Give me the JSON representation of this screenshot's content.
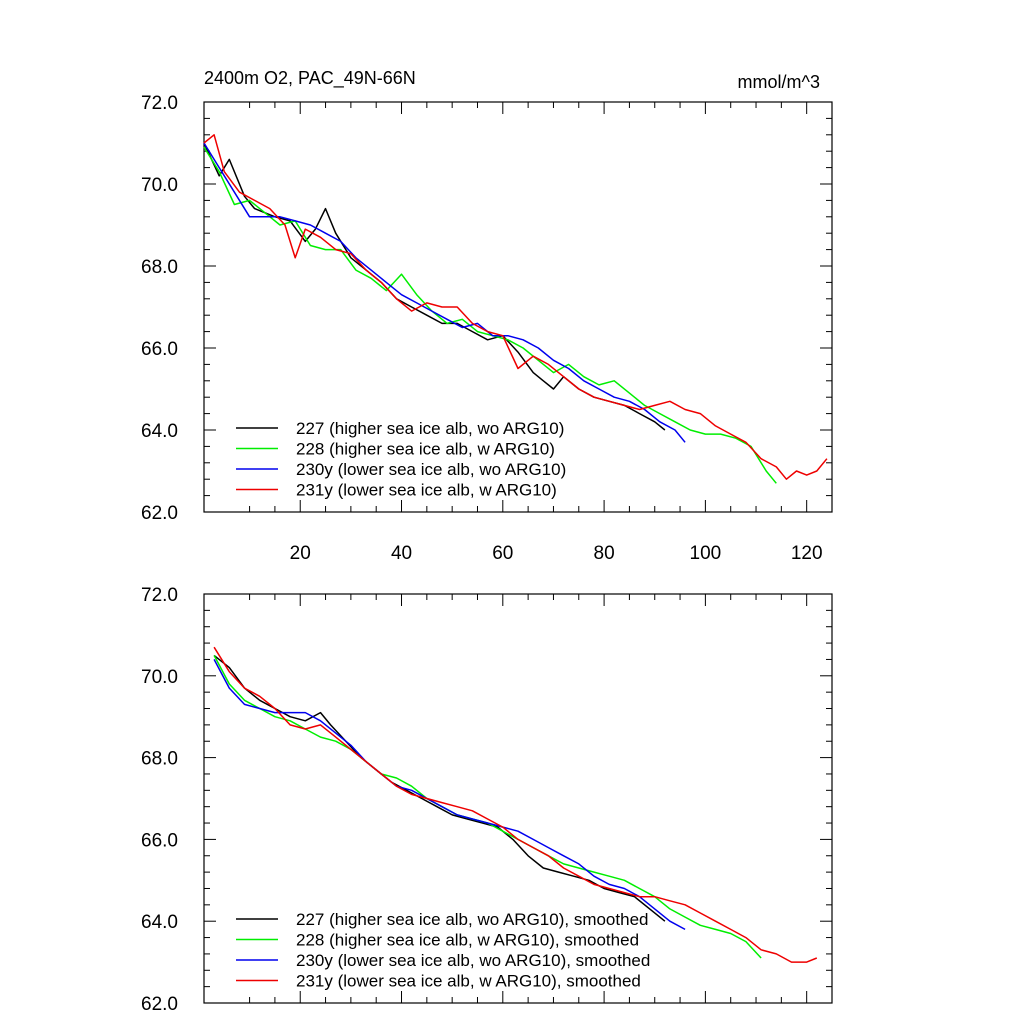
{
  "header": {
    "title": "2400m O2, PAC_49N-66N",
    "units": "mmol/m^3"
  },
  "chart_data": [
    {
      "type": "line",
      "panel": "top",
      "xlim": [
        1,
        125
      ],
      "ylim": [
        62.0,
        72.0
      ],
      "xticks": [
        20,
        40,
        60,
        80,
        100,
        120
      ],
      "xtick_labels": [
        "20",
        "40",
        "60",
        "80",
        "100",
        "120"
      ],
      "yticks": [
        62,
        64,
        66,
        68,
        70,
        72
      ],
      "ytick_labels": [
        "62.0",
        "64.0",
        "66.0",
        "68.0",
        "70.0",
        "72.0"
      ],
      "legend_position": "lower-left",
      "series": [
        {
          "name": "227 (higher sea ice alb, wo ARG10)",
          "color": "#000000",
          "x": [
            1,
            4,
            6,
            9,
            11,
            15,
            18,
            21,
            23,
            25,
            27,
            30,
            33,
            36,
            39,
            42,
            45,
            48,
            51,
            54,
            57,
            60,
            63,
            66,
            68,
            70,
            72,
            75,
            78,
            81,
            84,
            87,
            90,
            92
          ],
          "y": [
            71.0,
            70.2,
            70.6,
            69.7,
            69.4,
            69.2,
            69.1,
            68.6,
            68.9,
            69.4,
            68.8,
            68.2,
            67.9,
            67.6,
            67.2,
            67.0,
            66.8,
            66.6,
            66.6,
            66.4,
            66.2,
            66.3,
            65.9,
            65.4,
            65.2,
            65.0,
            65.3,
            65.0,
            64.8,
            64.7,
            64.6,
            64.4,
            64.2,
            64.0
          ]
        },
        {
          "name": "228 (higher sea ice alb, w ARG10)",
          "color": "#00ee00",
          "x": [
            1,
            4,
            7,
            10,
            13,
            16,
            19,
            22,
            25,
            28,
            31,
            34,
            37,
            40,
            43,
            46,
            49,
            52,
            55,
            58,
            61,
            64,
            67,
            70,
            73,
            76,
            79,
            82,
            85,
            88,
            91,
            94,
            97,
            100,
            103,
            106,
            109,
            112,
            114
          ],
          "y": [
            70.9,
            70.3,
            69.5,
            69.6,
            69.3,
            69.0,
            69.1,
            68.5,
            68.4,
            68.4,
            67.9,
            67.7,
            67.4,
            67.8,
            67.3,
            66.9,
            66.6,
            66.7,
            66.4,
            66.3,
            66.2,
            66.0,
            65.7,
            65.4,
            65.6,
            65.3,
            65.1,
            65.2,
            64.9,
            64.6,
            64.4,
            64.2,
            64.0,
            63.9,
            63.9,
            63.8,
            63.6,
            63.0,
            62.7
          ]
        },
        {
          "name": "230y (lower sea ice alb, wo ARG10)",
          "color": "#0000ee",
          "x": [
            1,
            4,
            7,
            10,
            13,
            16,
            19,
            22,
            25,
            28,
            31,
            34,
            37,
            40,
            43,
            46,
            49,
            52,
            55,
            58,
            61,
            64,
            67,
            70,
            73,
            76,
            79,
            82,
            85,
            88,
            91,
            94,
            96
          ],
          "y": [
            71.0,
            70.4,
            69.8,
            69.2,
            69.2,
            69.2,
            69.1,
            69.0,
            68.8,
            68.6,
            68.2,
            67.9,
            67.6,
            67.3,
            67.1,
            66.9,
            66.7,
            66.5,
            66.6,
            66.3,
            66.3,
            66.2,
            66.0,
            65.7,
            65.5,
            65.2,
            65.0,
            64.8,
            64.7,
            64.5,
            64.2,
            64.0,
            63.7
          ]
        },
        {
          "name": "231y (lower sea ice alb, w ARG10)",
          "color": "#ee0000",
          "x": [
            1,
            3,
            5,
            8,
            11,
            14,
            17,
            19,
            21,
            24,
            27,
            30,
            33,
            36,
            39,
            42,
            45,
            48,
            51,
            54,
            57,
            60,
            63,
            66,
            69,
            72,
            75,
            78,
            81,
            84,
            87,
            90,
            93,
            96,
            99,
            102,
            105,
            108,
            111,
            114,
            116,
            118,
            120,
            122,
            124
          ],
          "y": [
            71.0,
            71.2,
            70.3,
            69.8,
            69.6,
            69.4,
            69.0,
            68.2,
            68.9,
            68.7,
            68.4,
            68.3,
            67.9,
            67.6,
            67.2,
            66.9,
            67.1,
            67.0,
            67.0,
            66.6,
            66.4,
            66.3,
            65.5,
            65.8,
            65.6,
            65.3,
            65.0,
            64.8,
            64.7,
            64.6,
            64.5,
            64.6,
            64.7,
            64.5,
            64.4,
            64.1,
            63.9,
            63.7,
            63.3,
            63.1,
            62.8,
            63.0,
            62.9,
            63.0,
            63.3
          ]
        }
      ]
    },
    {
      "type": "line",
      "panel": "bottom",
      "xlim": [
        1,
        125
      ],
      "ylim": [
        62.0,
        72.0
      ],
      "xticks": [
        20,
        40,
        60,
        80,
        100,
        120
      ],
      "yticks": [
        62,
        64,
        66,
        68,
        70,
        72
      ],
      "ytick_labels": [
        "62.0",
        "64.0",
        "66.0",
        "68.0",
        "70.0",
        "72.0"
      ],
      "legend_position": "lower-left",
      "series": [
        {
          "name": "227 (higher sea ice alb, wo ARG10), smoothed",
          "color": "#000000",
          "x": [
            3,
            6,
            9,
            12,
            15,
            18,
            21,
            24,
            26,
            29,
            32,
            35,
            38,
            41,
            44,
            47,
            50,
            53,
            56,
            59,
            62,
            65,
            68,
            71,
            74,
            77,
            80,
            83,
            86,
            89,
            92
          ],
          "y": [
            70.5,
            70.2,
            69.7,
            69.4,
            69.2,
            69.0,
            68.9,
            69.1,
            68.8,
            68.4,
            68.0,
            67.7,
            67.4,
            67.2,
            67.0,
            66.8,
            66.6,
            66.5,
            66.4,
            66.3,
            66.0,
            65.6,
            65.3,
            65.2,
            65.1,
            65.0,
            64.8,
            64.7,
            64.6,
            64.3,
            64.0
          ]
        },
        {
          "name": "228 (higher sea ice alb, w ARG10), smoothed",
          "color": "#00ee00",
          "x": [
            3,
            6,
            9,
            12,
            15,
            18,
            21,
            24,
            27,
            30,
            33,
            36,
            39,
            42,
            45,
            48,
            51,
            54,
            57,
            60,
            63,
            66,
            69,
            72,
            75,
            78,
            81,
            84,
            87,
            90,
            93,
            96,
            99,
            102,
            105,
            108,
            111
          ],
          "y": [
            70.5,
            69.8,
            69.4,
            69.2,
            69.0,
            68.9,
            68.7,
            68.5,
            68.4,
            68.2,
            67.9,
            67.6,
            67.5,
            67.3,
            67.0,
            66.8,
            66.6,
            66.5,
            66.4,
            66.2,
            66.0,
            65.8,
            65.6,
            65.4,
            65.3,
            65.2,
            65.1,
            65.0,
            64.8,
            64.6,
            64.3,
            64.1,
            63.9,
            63.8,
            63.7,
            63.5,
            63.1
          ]
        },
        {
          "name": "230y (lower sea ice alb, wo ARG10), smoothed",
          "color": "#0000ee",
          "x": [
            3,
            6,
            9,
            12,
            15,
            18,
            21,
            24,
            27,
            30,
            33,
            36,
            39,
            42,
            45,
            48,
            51,
            54,
            57,
            60,
            63,
            66,
            69,
            72,
            75,
            78,
            81,
            84,
            87,
            90,
            93,
            96
          ],
          "y": [
            70.4,
            69.7,
            69.3,
            69.2,
            69.1,
            69.1,
            69.1,
            68.9,
            68.6,
            68.3,
            67.9,
            67.6,
            67.3,
            67.2,
            67.0,
            66.8,
            66.6,
            66.5,
            66.4,
            66.3,
            66.2,
            66.0,
            65.8,
            65.6,
            65.4,
            65.1,
            64.9,
            64.8,
            64.6,
            64.3,
            64.0,
            63.8
          ]
        },
        {
          "name": "231y (lower sea ice alb, w ARG10), smoothed",
          "color": "#ee0000",
          "x": [
            3,
            6,
            9,
            12,
            15,
            18,
            21,
            24,
            27,
            30,
            33,
            36,
            39,
            42,
            45,
            48,
            51,
            54,
            57,
            60,
            63,
            66,
            69,
            72,
            75,
            78,
            81,
            84,
            87,
            90,
            93,
            96,
            99,
            102,
            105,
            108,
            111,
            114,
            117,
            120,
            122
          ],
          "y": [
            70.7,
            70.1,
            69.7,
            69.5,
            69.2,
            68.8,
            68.7,
            68.8,
            68.5,
            68.2,
            67.9,
            67.6,
            67.3,
            67.1,
            67.0,
            66.9,
            66.8,
            66.7,
            66.5,
            66.3,
            66.0,
            65.8,
            65.6,
            65.3,
            65.1,
            64.9,
            64.8,
            64.7,
            64.6,
            64.6,
            64.5,
            64.4,
            64.2,
            64.0,
            63.8,
            63.6,
            63.3,
            63.2,
            63.0,
            63.0,
            63.1
          ]
        }
      ]
    }
  ]
}
